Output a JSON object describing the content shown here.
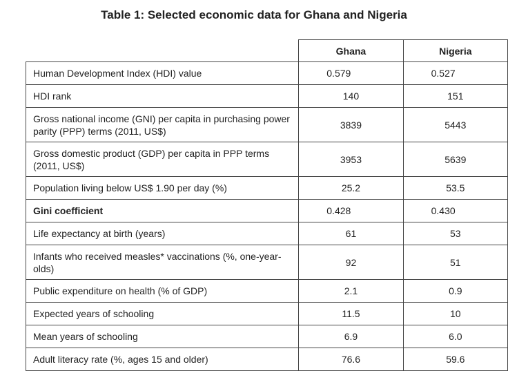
{
  "title": "Table 1: Selected economic data for Ghana and Nigeria",
  "columns": [
    "Ghana",
    "Nigeria"
  ],
  "rows": [
    {
      "label": "Human Development Index (HDI) value",
      "ghana": "0.579",
      "nigeria": "0.527"
    },
    {
      "label": "HDI rank",
      "ghana": "140",
      "nigeria": "151"
    },
    {
      "label": "Gross national income (GNI) per capita in purchasing power parity (PPP) terms (2011, US$)",
      "ghana": "3839",
      "nigeria": "5443"
    },
    {
      "label": "Gross domestic product (GDP) per capita in PPP terms (2011, US$)",
      "ghana": "3953",
      "nigeria": "5639"
    },
    {
      "label": "Population living below US$ 1.90 per day (%)",
      "ghana": "25.2",
      "nigeria": "53.5"
    },
    {
      "label": "Gini coefficient",
      "ghana": "0.428",
      "nigeria": "0.430"
    },
    {
      "label": "Life expectancy at birth (years)",
      "ghana": "61",
      "nigeria": "53"
    },
    {
      "label": "Infants who received measles* vaccinations (%, one-year-olds)",
      "ghana": "92",
      "nigeria": "51"
    },
    {
      "label": "Public expenditure on health (% of GDP)",
      "ghana": "2.1",
      "nigeria": "0.9"
    },
    {
      "label": "Expected years of schooling",
      "ghana": "11.5",
      "nigeria": "10"
    },
    {
      "label": "Mean years of schooling",
      "ghana": "6.9",
      "nigeria": "6.0"
    },
    {
      "label": "Adult literacy rate (%, ages 15 and older)",
      "ghana": "76.6",
      "nigeria": "59.6"
    }
  ]
}
